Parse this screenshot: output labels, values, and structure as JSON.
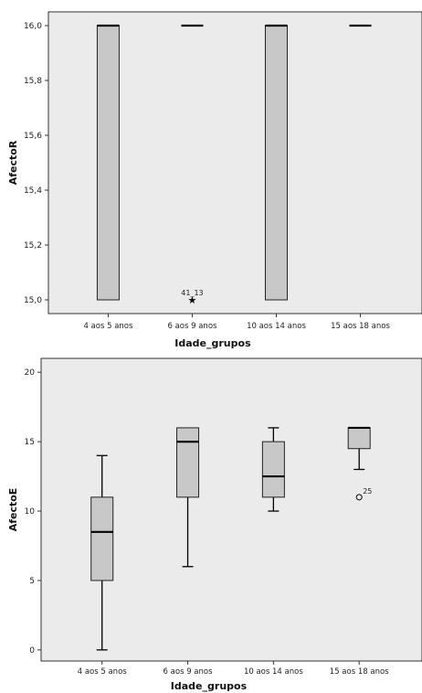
{
  "chart_data": [
    {
      "type": "boxplot",
      "xlabel": "Idade_grupos",
      "ylabel": "AfectoR",
      "ylim": [
        14.95,
        16.05
      ],
      "yticks": [
        "15,0",
        "15,2",
        "15,4",
        "15,6",
        "15,8",
        "16,0"
      ],
      "ytick_values": [
        15.0,
        15.2,
        15.4,
        15.6,
        15.8,
        16.0
      ],
      "categories": [
        "4 aos 5 anos",
        "6 aos 9 anos",
        "10 aos 14 anos",
        "15 aos 18 anos"
      ],
      "boxes": [
        {
          "min": 15,
          "q1": 15,
          "median": 16,
          "q3": 16,
          "max": 16
        },
        {
          "min": 16,
          "q1": 16,
          "median": 16,
          "q3": 16,
          "max": 16
        },
        {
          "min": 15,
          "q1": 15,
          "median": 16,
          "q3": 16,
          "max": 16
        },
        {
          "min": 16,
          "q1": 16,
          "median": 16,
          "q3": 16,
          "max": 16
        }
      ],
      "outliers": [
        {
          "category": 1,
          "value": 15,
          "marker": "star",
          "label": "41_13"
        }
      ],
      "grid": false,
      "background": "#ebebeb",
      "box_color": "#c8c8c8"
    },
    {
      "type": "boxplot",
      "xlabel": "Idade_grupos",
      "ylabel": "AfectoE",
      "ylim": [
        -0.8,
        21
      ],
      "yticks": [
        "0",
        "5",
        "10",
        "15",
        "20"
      ],
      "ytick_values": [
        0,
        5,
        10,
        15,
        20
      ],
      "categories": [
        "4 aos 5 anos",
        "6 aos 9 anos",
        "10 aos 14 anos",
        "15 aos 18 anos"
      ],
      "boxes": [
        {
          "min": 0,
          "q1": 5,
          "median": 8.5,
          "q3": 11,
          "max": 14
        },
        {
          "min": 6,
          "q1": 11,
          "median": 15,
          "q3": 16,
          "max": 16
        },
        {
          "min": 10,
          "q1": 11,
          "median": 12.5,
          "q3": 15,
          "max": 16
        },
        {
          "min": 13,
          "q1": 14.5,
          "median": 16,
          "q3": 16,
          "max": 16
        }
      ],
      "outliers": [
        {
          "category": 3,
          "value": 11,
          "marker": "circle",
          "label": "25"
        }
      ],
      "grid": false,
      "background": "#ebebeb",
      "box_color": "#c8c8c8"
    }
  ]
}
